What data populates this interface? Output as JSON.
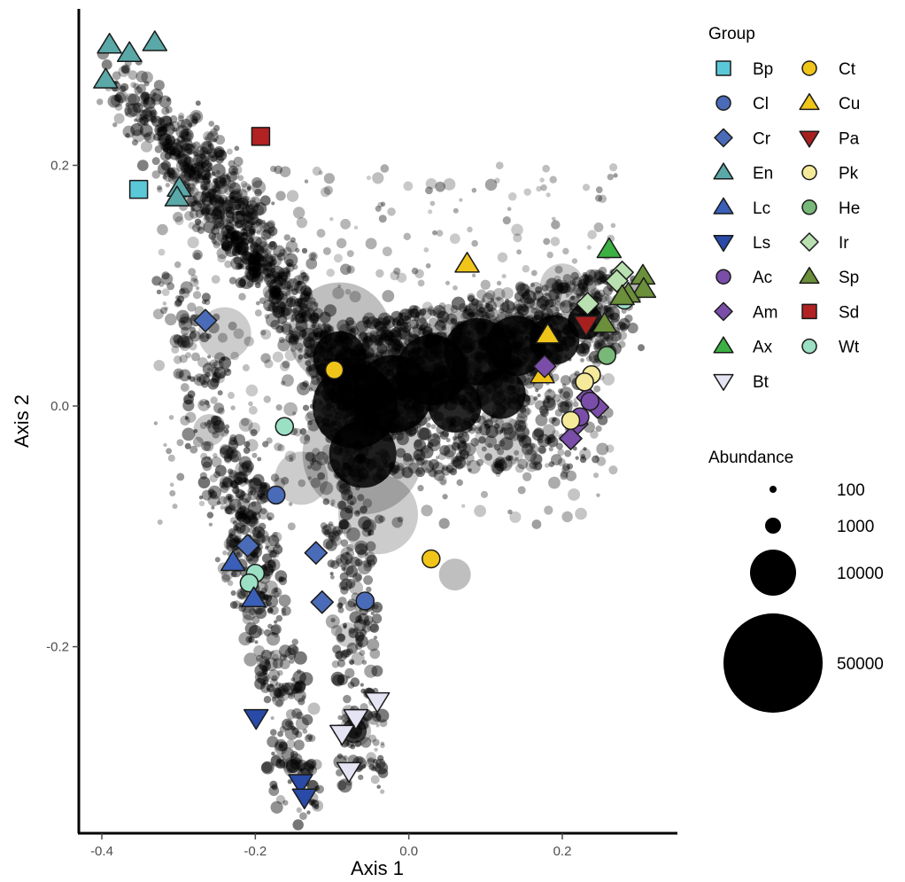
{
  "chart_data": {
    "type": "scatter",
    "xlabel": "Axis 1",
    "ylabel": "Axis 2",
    "xlim": [
      -0.43,
      0.35
    ],
    "ylim": [
      -0.355,
      0.33
    ],
    "x_ticks": [
      -0.4,
      -0.2,
      0.0,
      0.2
    ],
    "x_tick_labels": [
      "-0.4",
      "-0.2",
      "0.0",
      "0.2"
    ],
    "y_ticks": [
      -0.2,
      0.0,
      0.2
    ],
    "y_tick_labels": [
      "-0.2",
      "0.0",
      "0.2"
    ],
    "grid": false,
    "legend_placement": "right",
    "group_legend": {
      "title": "Group",
      "items": [
        {
          "label": "Bp",
          "shape": "square",
          "color": "#5bc8d8"
        },
        {
          "label": "Cl",
          "shape": "circle",
          "color": "#4a6bb7"
        },
        {
          "label": "Cr",
          "shape": "diamond",
          "color": "#4a6bb7"
        },
        {
          "label": "En",
          "shape": "triangle-up",
          "color": "#5aa8a8"
        },
        {
          "label": "Lc",
          "shape": "triangle-up",
          "color": "#3a5fb8"
        },
        {
          "label": "Ls",
          "shape": "triangle-down",
          "color": "#2a4aa8"
        },
        {
          "label": "Ac",
          "shape": "circle",
          "color": "#7a4ea8"
        },
        {
          "label": "Am",
          "shape": "diamond",
          "color": "#7a4ea8"
        },
        {
          "label": "Ax",
          "shape": "triangle-up",
          "color": "#3cb043"
        },
        {
          "label": "Bt",
          "shape": "triangle-down",
          "color": "#e4e4f4"
        },
        {
          "label": "Ct",
          "shape": "circle",
          "color": "#f0c51a"
        },
        {
          "label": "Cu",
          "shape": "triangle-up",
          "color": "#f0c51a"
        },
        {
          "label": "Pa",
          "shape": "triangle-down",
          "color": "#a72020"
        },
        {
          "label": "Pk",
          "shape": "circle",
          "color": "#f4ea9a"
        },
        {
          "label": "He",
          "shape": "circle",
          "color": "#78b878"
        },
        {
          "label": "Ir",
          "shape": "diamond",
          "color": "#b8e0b0"
        },
        {
          "label": "Sp",
          "shape": "triangle-up",
          "color": "#6b8f3a"
        },
        {
          "label": "Sd",
          "shape": "square",
          "color": "#b22222"
        },
        {
          "label": "Wt",
          "shape": "circle",
          "color": "#9be0c4"
        }
      ]
    },
    "size_legend": {
      "title": "Abundance",
      "items": [
        {
          "label": "100",
          "value": 100
        },
        {
          "label": "1000",
          "value": 1000
        },
        {
          "label": "10000",
          "value": 10000
        },
        {
          "label": "50000",
          "value": 50000
        }
      ]
    },
    "background_points_color": "#000000",
    "sample_points": [
      {
        "group": "En",
        "x": -0.39,
        "y": 0.3
      },
      {
        "group": "En",
        "x": -0.364,
        "y": 0.293
      },
      {
        "group": "En",
        "x": -0.331,
        "y": 0.302
      },
      {
        "group": "En",
        "x": -0.395,
        "y": 0.271
      },
      {
        "group": "En",
        "x": -0.299,
        "y": 0.181
      },
      {
        "group": "En",
        "x": -0.302,
        "y": 0.173
      },
      {
        "group": "Bp",
        "x": -0.352,
        "y": 0.18
      },
      {
        "group": "Sd",
        "x": -0.193,
        "y": 0.224
      },
      {
        "group": "Cr",
        "x": -0.265,
        "y": 0.071
      },
      {
        "group": "Cr",
        "x": -0.21,
        "y": -0.116
      },
      {
        "group": "Cr",
        "x": -0.121,
        "y": -0.122
      },
      {
        "group": "Cr",
        "x": -0.113,
        "y": -0.163
      },
      {
        "group": "Cl",
        "x": -0.173,
        "y": -0.074
      },
      {
        "group": "Cl",
        "x": -0.057,
        "y": -0.162
      },
      {
        "group": "Wt",
        "x": -0.162,
        "y": -0.017
      },
      {
        "group": "Wt",
        "x": -0.2,
        "y": -0.139
      },
      {
        "group": "Wt",
        "x": -0.208,
        "y": -0.147
      },
      {
        "group": "Wt",
        "x": 0.281,
        "y": 0.088
      },
      {
        "group": "Lc",
        "x": -0.229,
        "y": -0.13
      },
      {
        "group": "Lc",
        "x": -0.202,
        "y": -0.16
      },
      {
        "group": "Ls",
        "x": -0.199,
        "y": -0.259
      },
      {
        "group": "Ls",
        "x": -0.141,
        "y": -0.313
      },
      {
        "group": "Ls",
        "x": -0.136,
        "y": -0.325
      },
      {
        "group": "Bt",
        "x": -0.069,
        "y": -0.259
      },
      {
        "group": "Bt",
        "x": -0.041,
        "y": -0.245
      },
      {
        "group": "Bt",
        "x": -0.087,
        "y": -0.272
      },
      {
        "group": "Bt",
        "x": -0.078,
        "y": -0.303
      },
      {
        "group": "Ct",
        "x": -0.097,
        "y": 0.03
      },
      {
        "group": "Ct",
        "x": 0.029,
        "y": -0.127
      },
      {
        "group": "Cu",
        "x": 0.076,
        "y": 0.118
      },
      {
        "group": "Cu",
        "x": 0.181,
        "y": 0.059
      },
      {
        "group": "Cu",
        "x": 0.174,
        "y": 0.026
      },
      {
        "group": "Am",
        "x": 0.177,
        "y": 0.033
      },
      {
        "group": "Am",
        "x": 0.233,
        "y": 0.007
      },
      {
        "group": "Am",
        "x": 0.246,
        "y": -0.001
      },
      {
        "group": "Am",
        "x": 0.219,
        "y": -0.015
      },
      {
        "group": "Am",
        "x": 0.211,
        "y": -0.027
      },
      {
        "group": "Ac",
        "x": 0.236,
        "y": 0.004
      },
      {
        "group": "Ac",
        "x": 0.223,
        "y": -0.009
      },
      {
        "group": "Pk",
        "x": 0.238,
        "y": 0.026
      },
      {
        "group": "Pk",
        "x": 0.229,
        "y": 0.02
      },
      {
        "group": "Pk",
        "x": 0.211,
        "y": -0.012
      },
      {
        "group": "Pa",
        "x": 0.231,
        "y": 0.068
      },
      {
        "group": "Ir",
        "x": 0.233,
        "y": 0.085
      },
      {
        "group": "Ir",
        "x": 0.278,
        "y": 0.111
      },
      {
        "group": "Ir",
        "x": 0.271,
        "y": 0.104
      },
      {
        "group": "He",
        "x": 0.258,
        "y": 0.042
      },
      {
        "group": "Ax",
        "x": 0.261,
        "y": 0.13
      },
      {
        "group": "Sp",
        "x": 0.305,
        "y": 0.108
      },
      {
        "group": "Sp",
        "x": 0.306,
        "y": 0.097
      },
      {
        "group": "Sp",
        "x": 0.286,
        "y": 0.093
      },
      {
        "group": "Sp",
        "x": 0.278,
        "y": 0.091
      },
      {
        "group": "Sp",
        "x": 0.255,
        "y": 0.068
      }
    ]
  }
}
